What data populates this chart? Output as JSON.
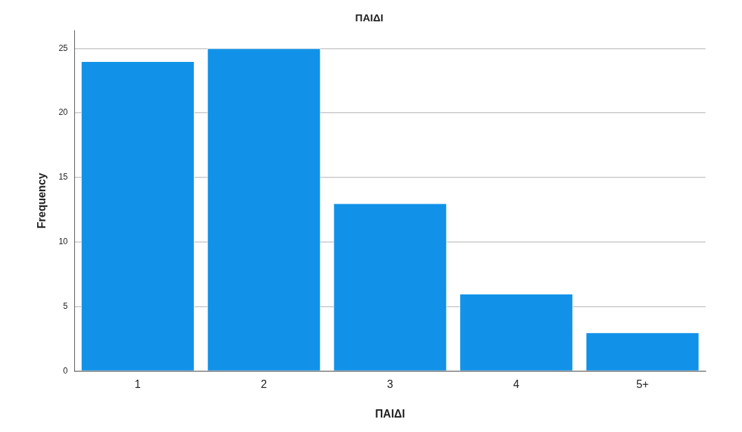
{
  "chart_data": {
    "type": "bar",
    "title": "ΠΑΙΔΙ",
    "xlabel": "ΠΑΙΔΙ",
    "ylabel": "Frequency",
    "categories": [
      "1",
      "2",
      "3",
      "4",
      "5+"
    ],
    "values": [
      24,
      25,
      13,
      6,
      3
    ],
    "color": "#1192e8",
    "ylim": [
      0,
      26.4
    ],
    "yticks": [
      0,
      5,
      10,
      15,
      20,
      25
    ],
    "grid": "y",
    "legend": false
  }
}
